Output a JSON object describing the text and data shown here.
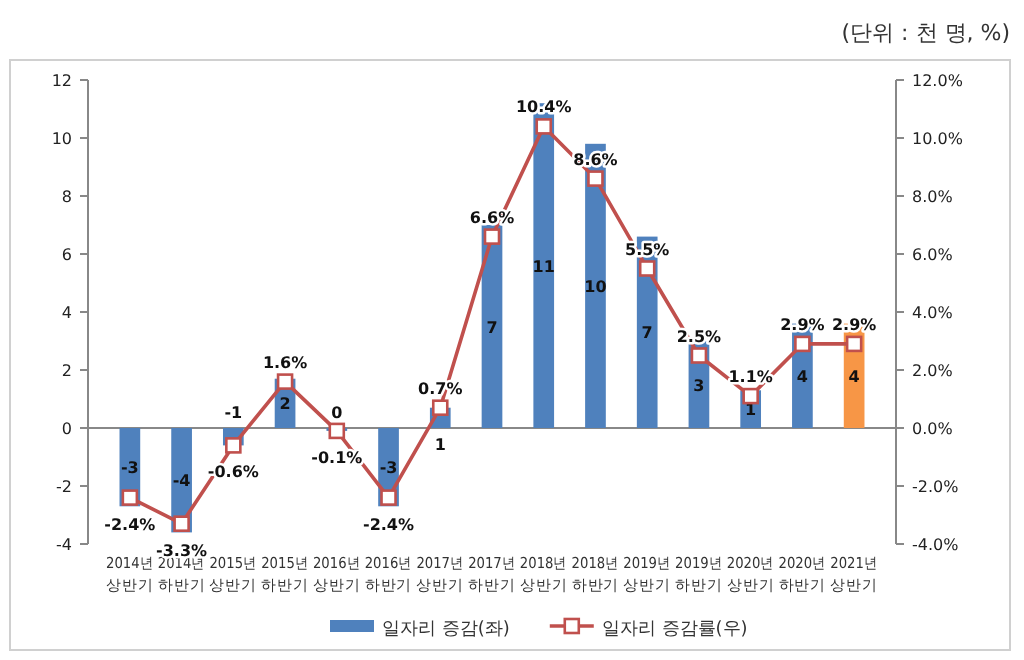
{
  "chart_data": {
    "type": "bar",
    "annotations": [
      "(단위 : 천 명, %)"
    ],
    "categories": [
      "2014년 상반기",
      "2014년 하반기",
      "2015년 상반기",
      "2015년 하반기",
      "2016년 상반기",
      "2016년 하반기",
      "2017년 상반기",
      "2017년 하반기",
      "2018년 상반기",
      "2018년 하반기",
      "2019년 상반기",
      "2019년 하반기",
      "2020년 상반기",
      "2020년 하반기",
      "2021년 상반기"
    ],
    "series": [
      {
        "name": "일자리 증감(좌)",
        "color": "#4f81bd",
        "colors": [
          "#4f81bd",
          "#4f81bd",
          "#4f81bd",
          "#4f81bd",
          "#4f81bd",
          "#4f81bd",
          "#4f81bd",
          "#4f81bd",
          "#4f81bd",
          "#4f81bd",
          "#4f81bd",
          "#4f81bd",
          "#4f81bd",
          "#4f81bd",
          "#f79646"
        ],
        "values": [
          -2.7,
          -3.6,
          -0.6,
          1.7,
          -0.1,
          -2.7,
          0.7,
          7.0,
          11.2,
          9.8,
          6.6,
          3.0,
          1.3,
          3.6,
          3.6
        ],
        "value_labels": [
          "-3",
          "-4",
          "-1",
          "2",
          "0",
          "-3",
          "1",
          "7",
          "11",
          "10",
          "7",
          "3",
          "1",
          "4",
          "4"
        ]
      },
      {
        "name": "일자리 증감률(우)",
        "type": "line",
        "axis": "y2",
        "color": "#c0504d",
        "marker": "square",
        "values": [
          -2.4,
          -3.3,
          -0.6,
          1.6,
          -0.1,
          -2.4,
          0.7,
          6.6,
          10.4,
          8.6,
          5.5,
          2.5,
          1.1,
          2.9,
          2.9
        ],
        "value_labels": [
          "-2.4%",
          "-3.3%",
          "-0.6%",
          "1.6%",
          "-0.1%",
          "-2.4%",
          "0.7%",
          "6.6%",
          "10.4%",
          "8.6%",
          "5.5%",
          "2.5%",
          "1.1%",
          "2.9%",
          "2.9%"
        ]
      }
    ],
    "ylim": [
      -4,
      12
    ],
    "yticks": [
      -4,
      -2,
      0,
      2,
      4,
      6,
      8,
      10,
      12
    ],
    "y2lim": [
      -4,
      12
    ],
    "y2ticks": [
      {
        "value": -4,
        "label": "-4.0%"
      },
      {
        "value": -2,
        "label": "-2.0%"
      },
      {
        "value": 0,
        "label": "0.0%"
      },
      {
        "value": 2,
        "label": "2.0%"
      },
      {
        "value": 4,
        "label": "4.0%"
      },
      {
        "value": 6,
        "label": "6.0%"
      },
      {
        "value": 8,
        "label": "8.0%"
      },
      {
        "value": 10,
        "label": "10.0%"
      },
      {
        "value": 12,
        "label": "12.0%"
      }
    ],
    "legend": "bottom"
  }
}
